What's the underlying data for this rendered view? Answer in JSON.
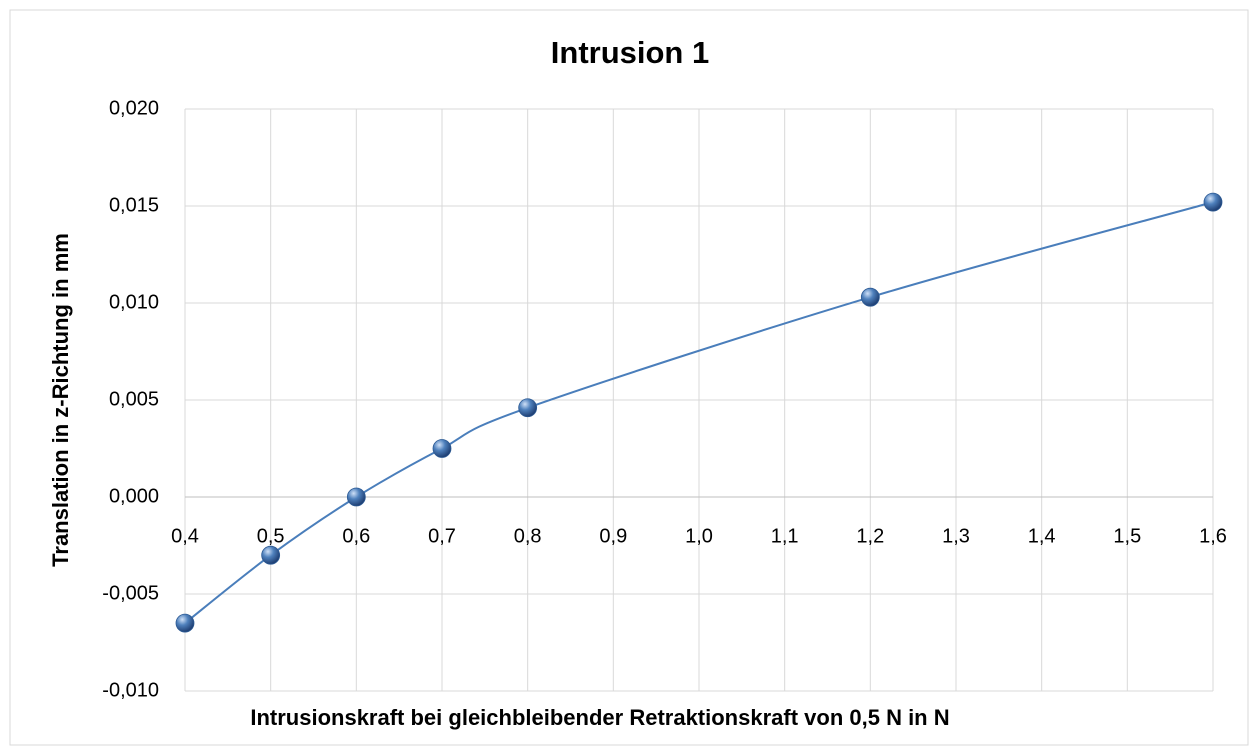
{
  "chart_data": {
    "type": "scatter",
    "title": "Intrusion 1",
    "xlabel": "Intrusionskraft bei gleichbleibender Retraktionskraft von 0,5 N in N",
    "ylabel": "Translation in z-Richtung in mm",
    "x": [
      0.4,
      0.5,
      0.6,
      0.7,
      0.8,
      1.2,
      1.6
    ],
    "series": [
      {
        "color": "#4a7ebb",
        "values": [
          -0.0065,
          -0.003,
          0.0,
          0.0025,
          0.0046,
          0.0103,
          0.0152
        ]
      }
    ],
    "smooth": true,
    "xlim": [
      0.4,
      1.6
    ],
    "xticks": [
      {
        "value": 0.4,
        "label": "0,4"
      },
      {
        "value": 0.5,
        "label": "0,5"
      },
      {
        "value": 0.6,
        "label": "0,6"
      },
      {
        "value": 0.7,
        "label": "0,7"
      },
      {
        "value": 0.8,
        "label": "0,8"
      },
      {
        "value": 0.9,
        "label": "0,9"
      },
      {
        "value": 1.0,
        "label": "1,0"
      },
      {
        "value": 1.1,
        "label": "1,1"
      },
      {
        "value": 1.2,
        "label": "1,2"
      },
      {
        "value": 1.3,
        "label": "1,3"
      },
      {
        "value": 1.4,
        "label": "1,4"
      },
      {
        "value": 1.5,
        "label": "1,5"
      },
      {
        "value": 1.6,
        "label": "1,6"
      }
    ],
    "ylim": [
      -0.01,
      0.02
    ],
    "yticks": [
      {
        "value": -0.01,
        "label": "-0,010"
      },
      {
        "value": -0.005,
        "label": "-0,005"
      },
      {
        "value": 0.0,
        "label": "0,000"
      },
      {
        "value": 0.005,
        "label": "0,005"
      },
      {
        "value": 0.01,
        "label": "0,010"
      },
      {
        "value": 0.015,
        "label": "0,015"
      },
      {
        "value": 0.02,
        "label": "0,020"
      }
    ],
    "grid": true
  }
}
